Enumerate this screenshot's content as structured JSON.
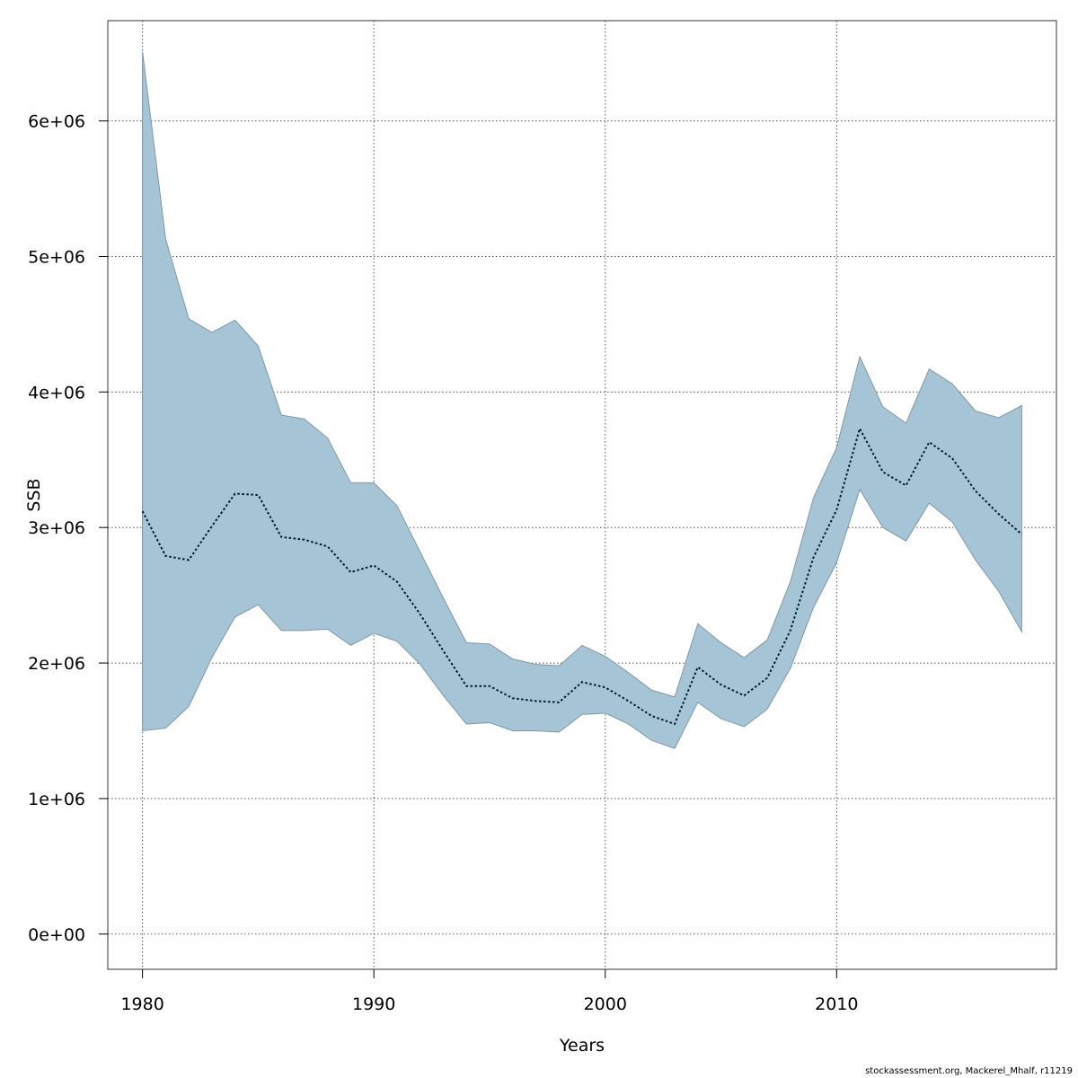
{
  "chart_data": {
    "type": "area",
    "xlabel": "Years",
    "ylabel": "SSB",
    "xlim": [
      1978.5,
      2019.5
    ],
    "ylim": [
      -260000,
      6740000
    ],
    "x_ticks": [
      1980,
      1990,
      2000,
      2010
    ],
    "x_tick_labels": [
      "1980",
      "1990",
      "2000",
      "2010"
    ],
    "y_ticks": [
      0,
      1000000,
      2000000,
      3000000,
      4000000,
      5000000,
      6000000
    ],
    "y_tick_labels": [
      "0e+00",
      "1e+06",
      "2e+06",
      "3e+06",
      "4e+06",
      "5e+06",
      "6e+06"
    ],
    "grid": true,
    "fill_color": "#a5c5d6",
    "line_color": "#001a33",
    "x": [
      1980,
      1981,
      1982,
      1983,
      1984,
      1985,
      1986,
      1987,
      1988,
      1989,
      1990,
      1991,
      1992,
      1993,
      1994,
      1995,
      1996,
      1997,
      1998,
      1999,
      2000,
      2001,
      2002,
      2003,
      2004,
      2005,
      2006,
      2007,
      2008,
      2009,
      2010,
      2011,
      2012,
      2013,
      2014,
      2015,
      2016,
      2017,
      2018
    ],
    "series": [
      {
        "role": "estimate",
        "values": [
          3120000,
          2790000,
          2760000,
          3010000,
          3250000,
          3240000,
          2930000,
          2910000,
          2860000,
          2670000,
          2720000,
          2600000,
          2360000,
          2090000,
          1830000,
          1830000,
          1740000,
          1720000,
          1710000,
          1860000,
          1820000,
          1720000,
          1610000,
          1550000,
          1970000,
          1840000,
          1760000,
          1890000,
          2240000,
          2780000,
          3130000,
          3730000,
          3410000,
          3310000,
          3630000,
          3510000,
          3270000,
          3100000,
          2950000
        ]
      },
      {
        "role": "upper",
        "values": [
          6510000,
          5130000,
          4540000,
          4440000,
          4530000,
          4340000,
          3830000,
          3800000,
          3660000,
          3330000,
          3330000,
          3160000,
          2820000,
          2480000,
          2150000,
          2140000,
          2030000,
          1990000,
          1980000,
          2130000,
          2050000,
          1930000,
          1800000,
          1750000,
          2290000,
          2150000,
          2040000,
          2170000,
          2600000,
          3220000,
          3590000,
          4260000,
          3890000,
          3770000,
          4170000,
          4060000,
          3860000,
          3810000,
          3900000
        ]
      },
      {
        "role": "lower",
        "values": [
          1500000,
          1520000,
          1680000,
          2040000,
          2340000,
          2430000,
          2240000,
          2240000,
          2250000,
          2130000,
          2220000,
          2160000,
          1990000,
          1760000,
          1550000,
          1560000,
          1500000,
          1500000,
          1490000,
          1620000,
          1630000,
          1550000,
          1430000,
          1370000,
          1710000,
          1590000,
          1530000,
          1660000,
          1960000,
          2410000,
          2740000,
          3280000,
          3000000,
          2900000,
          3180000,
          3040000,
          2760000,
          2530000,
          2230000
        ]
      }
    ]
  },
  "footer": {
    "credit": "stockassessment.org, Mackerel_Mhalf, r11219"
  }
}
